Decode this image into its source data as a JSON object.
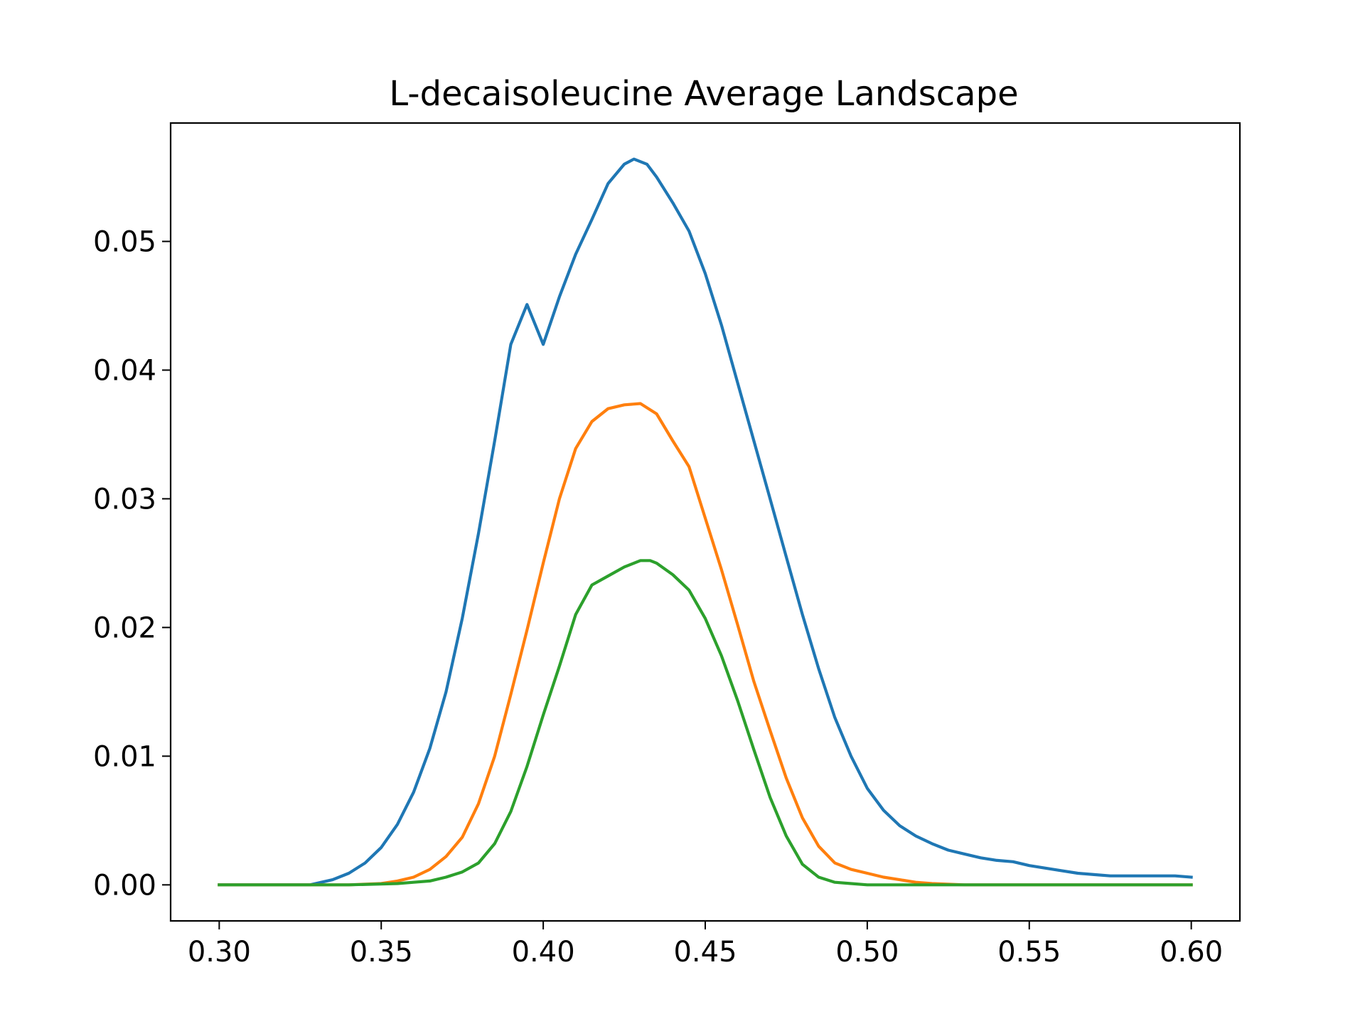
{
  "chart_data": {
    "type": "line",
    "title": "L-decaisoleucine Average Landscape",
    "xlabel": "",
    "ylabel": "",
    "xlim": [
      0.285,
      0.615
    ],
    "ylim": [
      -0.0028,
      0.0592
    ],
    "grid": false,
    "x_ticks": [
      0.3,
      0.35,
      0.4,
      0.45,
      0.5,
      0.55,
      0.6
    ],
    "x_tick_labels": [
      "0.30",
      "0.35",
      "0.40",
      "0.45",
      "0.50",
      "0.55",
      "0.60"
    ],
    "y_ticks": [
      0.0,
      0.01,
      0.02,
      0.03,
      0.04,
      0.05
    ],
    "y_tick_labels": [
      "0.00",
      "0.01",
      "0.02",
      "0.03",
      "0.04",
      "0.05"
    ],
    "series": [
      {
        "color": "#1f77b4",
        "points": [
          [
            0.3,
            0.0
          ],
          [
            0.31,
            0.0
          ],
          [
            0.32,
            0.0
          ],
          [
            0.328,
            0.0
          ],
          [
            0.335,
            0.0004
          ],
          [
            0.34,
            0.0009
          ],
          [
            0.345,
            0.0017
          ],
          [
            0.35,
            0.0029
          ],
          [
            0.355,
            0.0047
          ],
          [
            0.36,
            0.0072
          ],
          [
            0.365,
            0.0106
          ],
          [
            0.37,
            0.015
          ],
          [
            0.375,
            0.0207
          ],
          [
            0.38,
            0.0273
          ],
          [
            0.385,
            0.0345
          ],
          [
            0.39,
            0.042
          ],
          [
            0.395,
            0.0451
          ],
          [
            0.4,
            0.042
          ],
          [
            0.405,
            0.0457
          ],
          [
            0.41,
            0.049
          ],
          [
            0.415,
            0.0517
          ],
          [
            0.42,
            0.0545
          ],
          [
            0.425,
            0.056
          ],
          [
            0.428,
            0.0564
          ],
          [
            0.432,
            0.056
          ],
          [
            0.435,
            0.055
          ],
          [
            0.44,
            0.053
          ],
          [
            0.445,
            0.0508
          ],
          [
            0.45,
            0.0475
          ],
          [
            0.455,
            0.0435
          ],
          [
            0.46,
            0.039
          ],
          [
            0.465,
            0.0345
          ],
          [
            0.47,
            0.03
          ],
          [
            0.475,
            0.0255
          ],
          [
            0.48,
            0.021
          ],
          [
            0.485,
            0.0168
          ],
          [
            0.49,
            0.013
          ],
          [
            0.495,
            0.01
          ],
          [
            0.5,
            0.0075
          ],
          [
            0.505,
            0.0058
          ],
          [
            0.51,
            0.0046
          ],
          [
            0.515,
            0.0038
          ],
          [
            0.52,
            0.0032
          ],
          [
            0.525,
            0.0027
          ],
          [
            0.53,
            0.0024
          ],
          [
            0.535,
            0.0021
          ],
          [
            0.54,
            0.0019
          ],
          [
            0.545,
            0.0018
          ],
          [
            0.55,
            0.0015
          ],
          [
            0.555,
            0.0013
          ],
          [
            0.56,
            0.0011
          ],
          [
            0.565,
            0.0009
          ],
          [
            0.57,
            0.0008
          ],
          [
            0.575,
            0.0007
          ],
          [
            0.58,
            0.0007
          ],
          [
            0.585,
            0.0007
          ],
          [
            0.59,
            0.0007
          ],
          [
            0.595,
            0.0007
          ],
          [
            0.6,
            0.0006
          ]
        ]
      },
      {
        "color": "#ff7f0e",
        "points": [
          [
            0.3,
            0.0
          ],
          [
            0.32,
            0.0
          ],
          [
            0.34,
            0.0
          ],
          [
            0.35,
            0.0001
          ],
          [
            0.355,
            0.0003
          ],
          [
            0.36,
            0.0006
          ],
          [
            0.365,
            0.0012
          ],
          [
            0.37,
            0.0022
          ],
          [
            0.375,
            0.0037
          ],
          [
            0.38,
            0.0063
          ],
          [
            0.385,
            0.01
          ],
          [
            0.39,
            0.0148
          ],
          [
            0.395,
            0.0198
          ],
          [
            0.4,
            0.025
          ],
          [
            0.405,
            0.03
          ],
          [
            0.41,
            0.0339
          ],
          [
            0.415,
            0.036
          ],
          [
            0.42,
            0.037
          ],
          [
            0.425,
            0.0373
          ],
          [
            0.43,
            0.0374
          ],
          [
            0.435,
            0.0366
          ],
          [
            0.44,
            0.0345
          ],
          [
            0.445,
            0.0325
          ],
          [
            0.45,
            0.0285
          ],
          [
            0.455,
            0.0245
          ],
          [
            0.46,
            0.0202
          ],
          [
            0.465,
            0.0158
          ],
          [
            0.47,
            0.012
          ],
          [
            0.475,
            0.0083
          ],
          [
            0.48,
            0.0052
          ],
          [
            0.485,
            0.003
          ],
          [
            0.49,
            0.0017
          ],
          [
            0.495,
            0.0012
          ],
          [
            0.5,
            0.0009
          ],
          [
            0.505,
            0.0006
          ],
          [
            0.51,
            0.0004
          ],
          [
            0.515,
            0.0002
          ],
          [
            0.52,
            0.0001
          ],
          [
            0.53,
            0.0
          ],
          [
            0.6,
            0.0
          ]
        ]
      },
      {
        "color": "#2ca02c",
        "points": [
          [
            0.3,
            0.0
          ],
          [
            0.34,
            0.0
          ],
          [
            0.355,
            0.0001
          ],
          [
            0.36,
            0.0002
          ],
          [
            0.365,
            0.0003
          ],
          [
            0.37,
            0.0006
          ],
          [
            0.375,
            0.001
          ],
          [
            0.38,
            0.0017
          ],
          [
            0.385,
            0.0032
          ],
          [
            0.39,
            0.0057
          ],
          [
            0.395,
            0.0092
          ],
          [
            0.4,
            0.0132
          ],
          [
            0.405,
            0.017
          ],
          [
            0.41,
            0.021
          ],
          [
            0.415,
            0.0233
          ],
          [
            0.42,
            0.024
          ],
          [
            0.425,
            0.0247
          ],
          [
            0.43,
            0.0252
          ],
          [
            0.433,
            0.0252
          ],
          [
            0.435,
            0.025
          ],
          [
            0.44,
            0.0241
          ],
          [
            0.445,
            0.0229
          ],
          [
            0.45,
            0.0207
          ],
          [
            0.455,
            0.0178
          ],
          [
            0.46,
            0.0143
          ],
          [
            0.465,
            0.0105
          ],
          [
            0.47,
            0.0068
          ],
          [
            0.475,
            0.0038
          ],
          [
            0.48,
            0.0016
          ],
          [
            0.485,
            0.0006
          ],
          [
            0.49,
            0.0002
          ],
          [
            0.495,
            0.0001
          ],
          [
            0.5,
            0.0
          ],
          [
            0.6,
            0.0
          ]
        ]
      }
    ]
  }
}
